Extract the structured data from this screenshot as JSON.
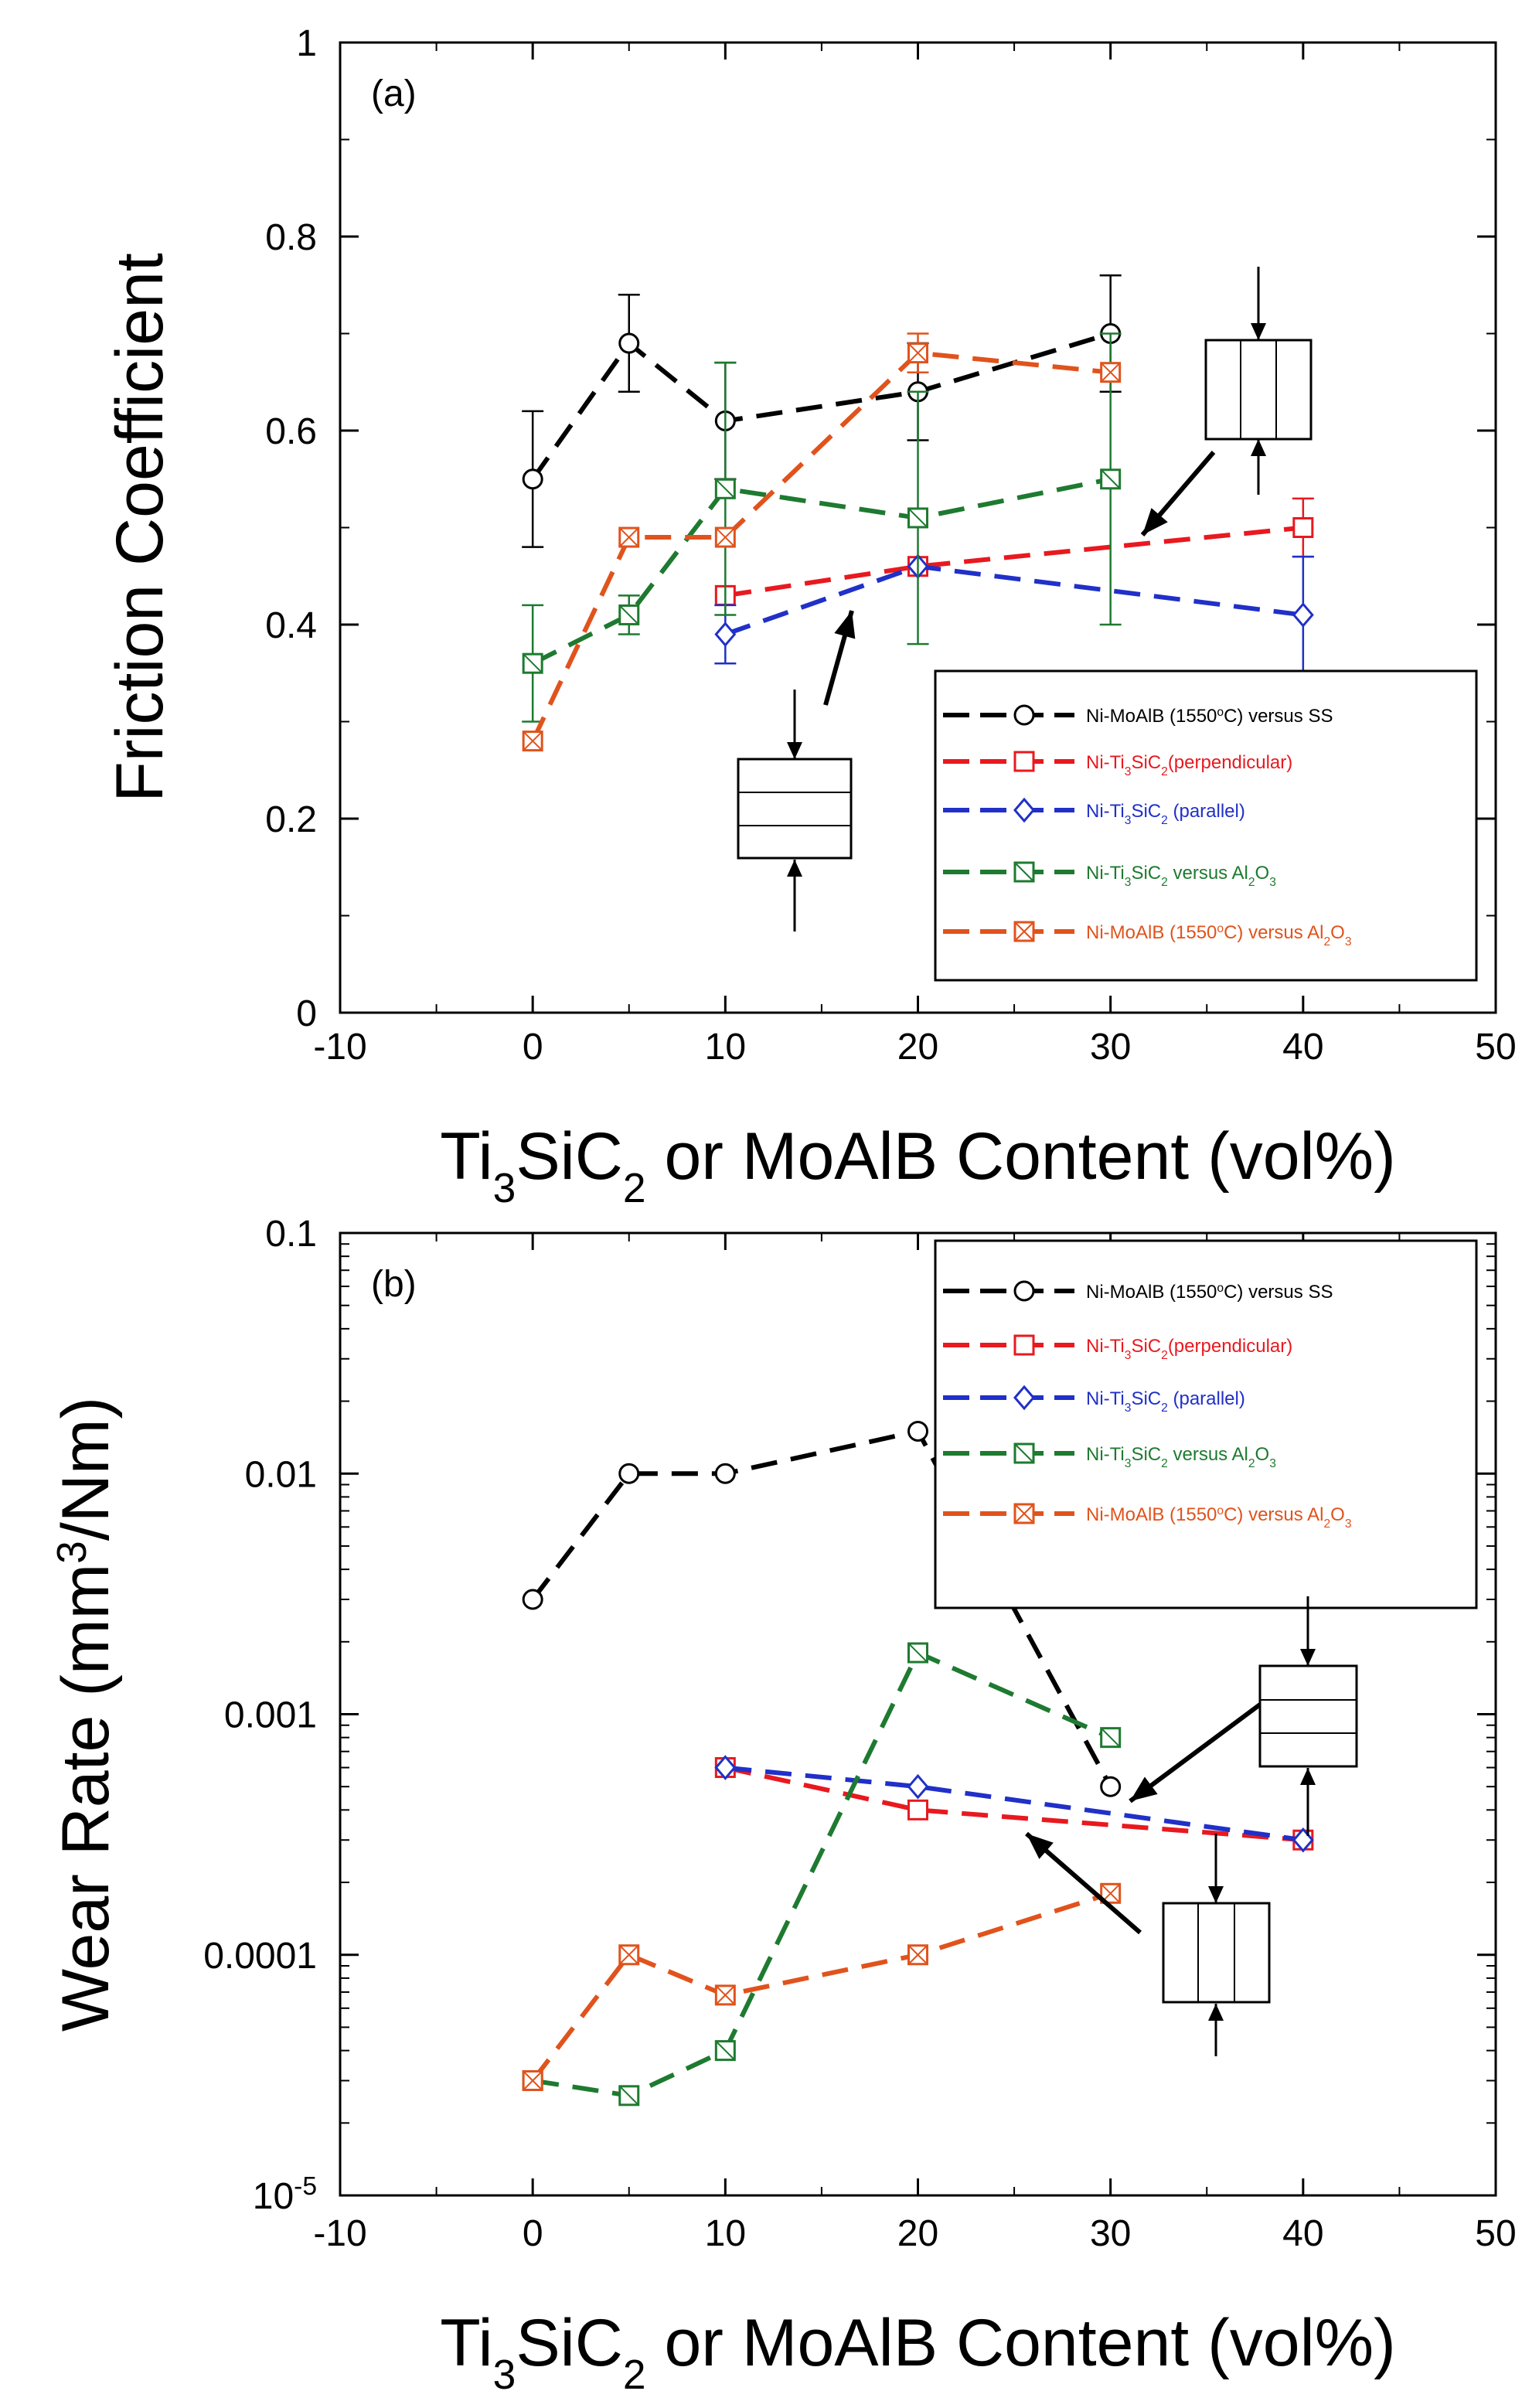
{
  "chart_data": [
    {
      "panel": "a",
      "type": "line",
      "panel_label": "(a)",
      "xlabel": {
        "main": "Ti",
        "sub1": "3",
        "mid": "SiC",
        "sub2": "2",
        "rest": " or MoAlB Content (vol%)"
      },
      "ylabel": "Friction Coefficient",
      "xlim": [
        -10,
        50
      ],
      "ylim": [
        0,
        1
      ],
      "yscale": "linear",
      "xticks": [
        "-10",
        "0",
        "10",
        "20",
        "30",
        "40",
        "50"
      ],
      "yticks": [
        "0",
        "0.2",
        "0.4",
        "0.6",
        "0.8",
        "1"
      ],
      "legend_position": "lower-right",
      "series": [
        {
          "key": "s1",
          "name": "Ni-MoAlB (1550°C) versus SS",
          "legend": {
            "pre": "Ni-MoAlB (1550",
            "sup": "o",
            "post": "C) versus SS"
          },
          "color": "#000000",
          "marker": "circle",
          "x": [
            0,
            5,
            10,
            20,
            30
          ],
          "y": [
            0.55,
            0.69,
            0.61,
            0.64,
            0.7
          ],
          "err": [
            0.07,
            0.05,
            0.06,
            0.05,
            0.06
          ]
        },
        {
          "key": "s2",
          "name": "Ni-Ti3SiC2 (perpendicular)",
          "legend": {
            "pre": "Ni-Ti",
            "sub1": "3",
            "mid": "SiC",
            "sub2": "2",
            "post": "(perpendicular)"
          },
          "color": "#e8191f",
          "marker": "square",
          "x": [
            10,
            20,
            40
          ],
          "y": [
            0.43,
            0.46,
            0.5
          ],
          "err": [
            0.0,
            0.0,
            0.03
          ]
        },
        {
          "key": "s3",
          "name": "Ni-Ti3SiC2 (parallel)",
          "legend": {
            "pre": "Ni-Ti",
            "sub1": "3",
            "mid": "SiC",
            "sub2": "2",
            "post": " (parallel)"
          },
          "color": "#2030c8",
          "marker": "diamond",
          "x": [
            10,
            20,
            40
          ],
          "y": [
            0.39,
            0.46,
            0.41
          ],
          "err": [
            0.03,
            0.0,
            0.06
          ]
        },
        {
          "key": "s4",
          "name": "Ni-Ti3SiC2 versus Al2O3",
          "legend": {
            "pre": "Ni-Ti",
            "sub1": "3",
            "mid": "SiC",
            "sub2": "2",
            "post": " versus Al",
            "sub3": "2",
            "post2": "O",
            "sub4": "3"
          },
          "color": "#1e7a30",
          "marker": "square-slash",
          "x": [
            0,
            5,
            10,
            20,
            30
          ],
          "y": [
            0.36,
            0.41,
            0.54,
            0.51,
            0.55
          ],
          "err": [
            0.06,
            0.02,
            0.13,
            0.13,
            0.15
          ]
        },
        {
          "key": "s5",
          "name": "Ni-MoAlB (1550°C) versus Al2O3",
          "legend": {
            "pre": "Ni-MoAlB (1550",
            "sup": "o",
            "post": "C) versus Al",
            "sub3": "2",
            "post2": "O",
            "sub4": "3"
          },
          "color": "#e0531c",
          "marker": "square-x",
          "x": [
            0,
            5,
            10,
            20,
            30
          ],
          "y": [
            0.28,
            0.49,
            0.49,
            0.68,
            0.66
          ],
          "err": [
            0.0,
            0.0,
            0.0,
            0.02,
            0.0
          ]
        }
      ]
    },
    {
      "panel": "b",
      "type": "line",
      "panel_label": "(b)",
      "xlabel": {
        "main": "Ti",
        "sub1": "3",
        "mid": "SiC",
        "sub2": "2",
        "rest": " or MoAlB Content (vol%)"
      },
      "ylabel": {
        "pre": "Wear Rate (mm",
        "sup": "3",
        "post": "/Nm)"
      },
      "xlim": [
        -10,
        50
      ],
      "ylim": [
        1e-05,
        0.1
      ],
      "yscale": "log",
      "xticks": [
        "-10",
        "0",
        "10",
        "20",
        "30",
        "40",
        "50"
      ],
      "yticks": [
        "10-5",
        "0.0001",
        "0.001",
        "0.01",
        "0.1"
      ],
      "ytick_first": {
        "base": "10",
        "sup": "-5"
      },
      "legend_position": "upper-right",
      "series": [
        {
          "key": "s1",
          "name": "Ni-MoAlB (1550°C) versus SS",
          "color": "#000000",
          "marker": "circle",
          "x": [
            0,
            5,
            10,
            20,
            30
          ],
          "y": [
            0.003,
            0.01,
            0.01,
            0.015,
            0.0005
          ]
        },
        {
          "key": "s2",
          "name": "Ni-Ti3SiC2 (perpendicular)",
          "color": "#e8191f",
          "marker": "square",
          "x": [
            10,
            20,
            40
          ],
          "y": [
            0.0006,
            0.0004,
            0.0003
          ]
        },
        {
          "key": "s3",
          "name": "Ni-Ti3SiC2 (parallel)",
          "color": "#2030c8",
          "marker": "diamond",
          "x": [
            10,
            20,
            40
          ],
          "y": [
            0.0006,
            0.0005,
            0.0003
          ]
        },
        {
          "key": "s4",
          "name": "Ni-Ti3SiC2 versus Al2O3",
          "color": "#1e7a30",
          "marker": "square-slash",
          "x": [
            0,
            5,
            10,
            20,
            30
          ],
          "y": [
            3e-05,
            2.6e-05,
            4e-05,
            0.0018,
            0.0008
          ]
        },
        {
          "key": "s5",
          "name": "Ni-MoAlB (1550°C) versus Al2O3",
          "color": "#e0531c",
          "marker": "square-x",
          "x": [
            0,
            5,
            10,
            20,
            30
          ],
          "y": [
            3e-05,
            0.0001,
            6.8e-05,
            0.0001,
            0.00018
          ]
        }
      ]
    }
  ]
}
